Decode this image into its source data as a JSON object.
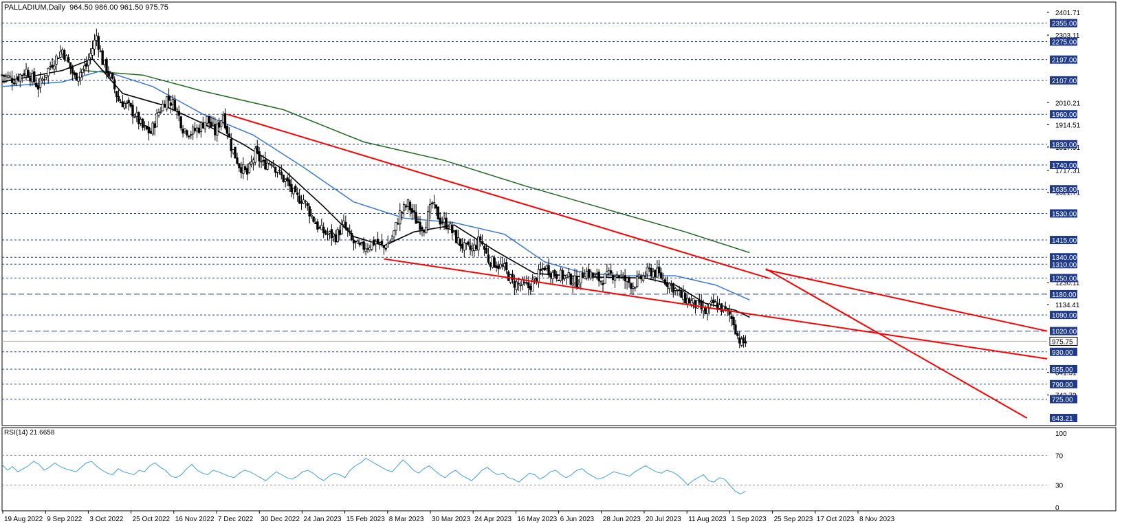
{
  "header": {
    "symbol": "PALLADIUM,Daily",
    "ohlc": "964.50 986.00 961.50 975.75"
  },
  "rsi_header": "RSI(14) 21.6658",
  "colors": {
    "candle": "#000000",
    "ma_fast": "#000000",
    "ma_mid": "#3a78d8",
    "ma_slow": "#1f6b1f",
    "trendline": "#ff0000",
    "level_line": "#1f3a8a",
    "rsi_line": "#3aa0e0",
    "price_label_bg": "#1f3a8a",
    "current_label_bg": "#ffffff"
  },
  "chart_data": [
    {
      "type": "candlestick",
      "title": "PALLADIUM,Daily",
      "ylim": [
        643.21,
        2401.71
      ],
      "price_labels_boxed": [
        "2355.00",
        "2275.00",
        "2197.00",
        "2107.00",
        "1960.00",
        "1830.00",
        "1740.00",
        "1635.00",
        "1530.00",
        "1415.00",
        "1340.00",
        "1310.00",
        "1250.00",
        "1180.00",
        "1090.00",
        "1020.00",
        "930.00",
        "855.00",
        "790.00",
        "725.00",
        "643.21"
      ],
      "price_labels_plain": [
        "2401.71",
        "2303.11",
        "2010.21",
        "1914.51",
        "1817.91",
        "1717.31",
        "1621.71",
        "1230.11",
        "1134.41",
        "841.31",
        "742.72"
      ],
      "current_price": "975.75",
      "levels": [
        2355,
        2275,
        2197,
        2107,
        1960,
        1830,
        1740,
        1635,
        1530,
        1415,
        1340,
        1310,
        1250,
        1180,
        1090,
        1020,
        930,
        855,
        790,
        725
      ],
      "dashed_long_levels": [
        1180,
        1020
      ],
      "x_labels": [
        "19 Aug 2022",
        "9 Sep 2022",
        "3 Oct 2022",
        "25 Oct 2022",
        "16 Nov 2022",
        "7 Dec 2022",
        "30 Dec 2022",
        "24 Jan 2023",
        "15 Feb 2023",
        "8 Mar 2023",
        "30 Mar 2023",
        "24 Apr 2023",
        "16 May 2023",
        "6 Jun 2023",
        "28 Jun 2023",
        "20 Jul 2023",
        "11 Aug 2023",
        "1 Sep 2023",
        "25 Sep 2023",
        "17 Oct 2023",
        "8 Nov 2023"
      ],
      "close_path": [
        [
          0,
          2130
        ],
        [
          6,
          2110
        ],
        [
          12,
          2150
        ],
        [
          18,
          2080
        ],
        [
          24,
          2170
        ],
        [
          30,
          2240
        ],
        [
          36,
          2120
        ],
        [
          42,
          2170
        ],
        [
          47,
          2300
        ],
        [
          50,
          2190
        ],
        [
          54,
          2120
        ],
        [
          58,
          2020
        ],
        [
          62,
          2000
        ],
        [
          66,
          1960
        ],
        [
          70,
          1900
        ],
        [
          74,
          1880
        ],
        [
          78,
          1970
        ],
        [
          82,
          2030
        ],
        [
          86,
          2000
        ],
        [
          90,
          1900
        ],
        [
          94,
          1880
        ],
        [
          98,
          1900
        ],
        [
          102,
          1940
        ],
        [
          106,
          1880
        ],
        [
          110,
          1960
        ],
        [
          114,
          1820
        ],
        [
          118,
          1740
        ],
        [
          122,
          1700
        ],
        [
          126,
          1790
        ],
        [
          130,
          1740
        ],
        [
          134,
          1760
        ],
        [
          138,
          1700
        ],
        [
          142,
          1660
        ],
        [
          146,
          1600
        ],
        [
          150,
          1590
        ],
        [
          154,
          1520
        ],
        [
          158,
          1460
        ],
        [
          162,
          1440
        ],
        [
          166,
          1430
        ],
        [
          170,
          1480
        ],
        [
          174,
          1410
        ],
        [
          178,
          1380
        ],
        [
          182,
          1390
        ],
        [
          186,
          1410
        ],
        [
          190,
          1380
        ],
        [
          194,
          1420
        ],
        [
          198,
          1530
        ],
        [
          202,
          1570
        ],
        [
          206,
          1500
        ],
        [
          210,
          1470
        ],
        [
          214,
          1570
        ],
        [
          218,
          1500
        ],
        [
          222,
          1480
        ],
        [
          226,
          1420
        ],
        [
          230,
          1380
        ],
        [
          234,
          1370
        ],
        [
          238,
          1420
        ],
        [
          242,
          1330
        ],
        [
          246,
          1310
        ],
        [
          250,
          1290
        ],
        [
          254,
          1230
        ],
        [
          258,
          1220
        ],
        [
          262,
          1210
        ],
        [
          266,
          1250
        ],
        [
          270,
          1300
        ],
        [
          274,
          1270
        ],
        [
          278,
          1260
        ],
        [
          282,
          1250
        ],
        [
          286,
          1230
        ],
        [
          290,
          1280
        ],
        [
          294,
          1260
        ],
        [
          298,
          1240
        ],
        [
          302,
          1260
        ],
        [
          306,
          1270
        ],
        [
          310,
          1240
        ],
        [
          314,
          1220
        ],
        [
          318,
          1250
        ],
        [
          322,
          1280
        ],
        [
          326,
          1270
        ],
        [
          330,
          1240
        ],
        [
          334,
          1210
        ],
        [
          338,
          1170
        ],
        [
          342,
          1150
        ],
        [
          346,
          1130
        ],
        [
          350,
          1100
        ],
        [
          354,
          1140
        ],
        [
          358,
          1120
        ],
        [
          362,
          1090
        ],
        [
          364,
          1060
        ],
        [
          366,
          1000
        ],
        [
          368,
          965
        ],
        [
          370,
          975
        ]
      ],
      "trendlines": [
        {
          "from": [
            112,
            1960
          ],
          "to": [
            382,
            1248
          ]
        },
        {
          "from": [
            190,
            1333
          ],
          "to": [
            520,
            900
          ]
        },
        {
          "from": [
            380,
            1286
          ],
          "to": [
            520,
            1020
          ]
        },
        {
          "from": [
            380,
            1290
          ],
          "to": [
            510,
            643
          ]
        }
      ],
      "ma_fast": [
        [
          0,
          2100
        ],
        [
          30,
          2150
        ],
        [
          45,
          2200
        ],
        [
          60,
          2050
        ],
        [
          80,
          2000
        ],
        [
          100,
          1920
        ],
        [
          120,
          1830
        ],
        [
          140,
          1720
        ],
        [
          160,
          1560
        ],
        [
          175,
          1430
        ],
        [
          190,
          1390
        ],
        [
          205,
          1450
        ],
        [
          225,
          1480
        ],
        [
          245,
          1370
        ],
        [
          265,
          1270
        ],
        [
          290,
          1255
        ],
        [
          320,
          1250
        ],
        [
          335,
          1220
        ],
        [
          350,
          1140
        ],
        [
          365,
          1110
        ],
        [
          372,
          1080
        ]
      ],
      "ma_mid": [
        [
          0,
          2080
        ],
        [
          30,
          2100
        ],
        [
          50,
          2150
        ],
        [
          75,
          2080
        ],
        [
          100,
          1960
        ],
        [
          125,
          1870
        ],
        [
          150,
          1730
        ],
        [
          175,
          1580
        ],
        [
          200,
          1510
        ],
        [
          225,
          1490
        ],
        [
          250,
          1440
        ],
        [
          270,
          1320
        ],
        [
          290,
          1270
        ],
        [
          310,
          1260
        ],
        [
          335,
          1260
        ],
        [
          355,
          1220
        ],
        [
          372,
          1155
        ]
      ],
      "ma_slow": [
        [
          40,
          2150
        ],
        [
          70,
          2130
        ],
        [
          100,
          2060
        ],
        [
          140,
          1980
        ],
        [
          180,
          1840
        ],
        [
          220,
          1760
        ],
        [
          260,
          1650
        ],
        [
          300,
          1550
        ],
        [
          340,
          1450
        ],
        [
          372,
          1360
        ]
      ]
    },
    {
      "type": "line",
      "title": "RSI(14) 21.6658",
      "ylim": [
        0,
        100
      ],
      "y_ticks": [
        "100",
        "70",
        "30",
        "0"
      ],
      "levels": [
        70,
        30
      ],
      "values": [
        58,
        50,
        55,
        48,
        52,
        56,
        62,
        58,
        50,
        54,
        60,
        55,
        52,
        50,
        48,
        54,
        60,
        62,
        55,
        50,
        46,
        44,
        52,
        48,
        46,
        44,
        50,
        48,
        56,
        60,
        54,
        50,
        42,
        40,
        44,
        52,
        58,
        50,
        46,
        44,
        50,
        48,
        45,
        42,
        40,
        46,
        50,
        48,
        44,
        40,
        36,
        42,
        48,
        44,
        40,
        38,
        42,
        48,
        50,
        46,
        40,
        36,
        42,
        46,
        44,
        40,
        50,
        56,
        60,
        66,
        62,
        58,
        54,
        50,
        48,
        56,
        64,
        58,
        50,
        46,
        52,
        56,
        50,
        44,
        40,
        46,
        50,
        44,
        40,
        36,
        42,
        50,
        54,
        48,
        44,
        46,
        40,
        38,
        34,
        40,
        46,
        44,
        38,
        42,
        48,
        50,
        44,
        40,
        44,
        50,
        52,
        46,
        42,
        38,
        40,
        44,
        48,
        46,
        44,
        42,
        48,
        52,
        56,
        52,
        48,
        46,
        50,
        48,
        44,
        38,
        30,
        36,
        40,
        44,
        36,
        34,
        40,
        38,
        30,
        22,
        18,
        21.67
      ]
    }
  ]
}
